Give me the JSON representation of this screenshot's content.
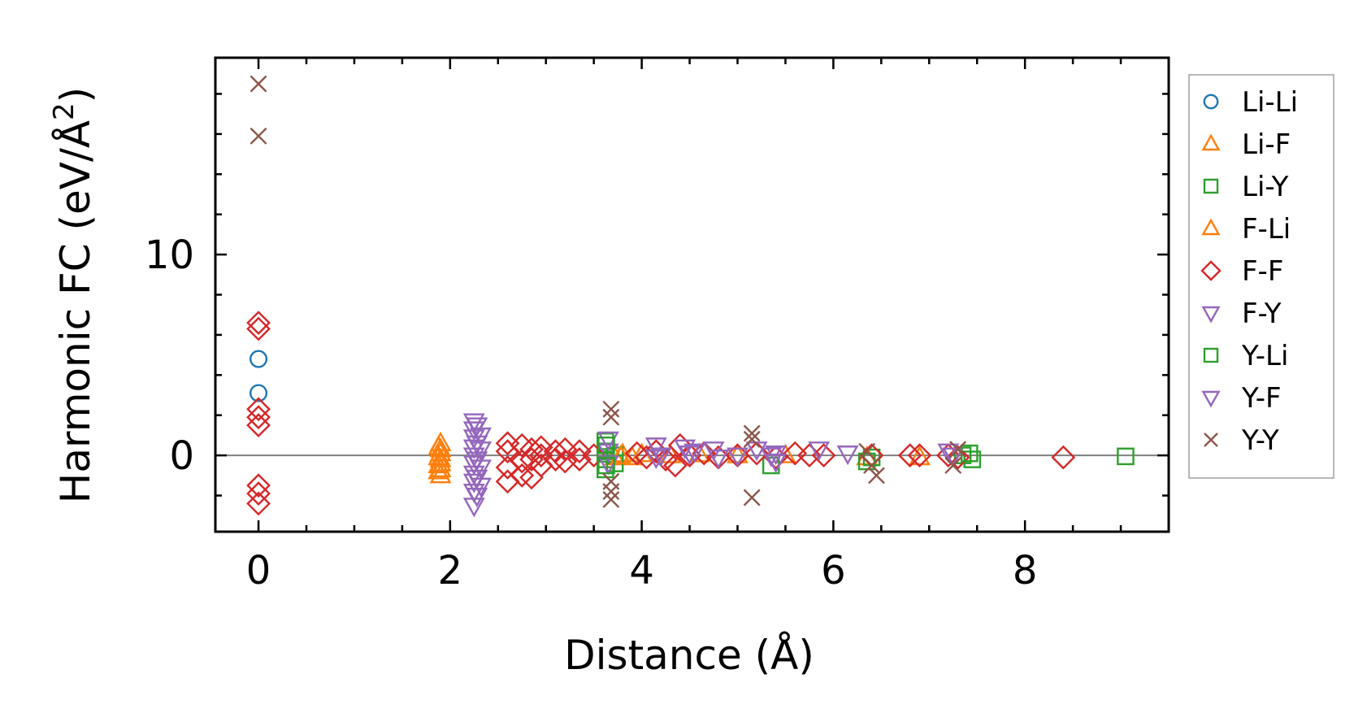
{
  "chart_data": {
    "type": "scatter",
    "title": "",
    "xlabel": "Distance (Å)",
    "ylabel_main": "Harmonic FC (eV/Å",
    "ylabel_sup": "2",
    "ylabel_close": ")",
    "xlim": [
      -0.45,
      9.5
    ],
    "ylim": [
      -3.8,
      19.8
    ],
    "xticks": [
      0,
      2,
      4,
      6,
      8
    ],
    "xtick_labels": [
      "0",
      "2",
      "4",
      "6",
      "8"
    ],
    "yticks": [
      0,
      10
    ],
    "ytick_labels": [
      "0",
      "10"
    ],
    "x_minor_step": 0.5,
    "y_minor_step": 2,
    "reference_line_y": 0,
    "grid": false,
    "legend_position": "outside-right",
    "series": [
      {
        "name": "Li-Li",
        "marker": "circle",
        "color": "#1f77b4",
        "points": [
          [
            0,
            4.8
          ],
          [
            0,
            3.1
          ]
        ]
      },
      {
        "name": "Li-F",
        "marker": "triangle-up",
        "color": "#ff7f0e",
        "points": [
          [
            1.9,
            0.6
          ],
          [
            1.9,
            0.3
          ],
          [
            1.9,
            0.1
          ],
          [
            1.9,
            -0.2
          ],
          [
            1.9,
            -0.4
          ],
          [
            1.9,
            -0.7
          ],
          [
            1.9,
            -1.0
          ],
          [
            3.72,
            -0.1
          ],
          [
            3.8,
            0.05
          ],
          [
            3.9,
            -0.1
          ],
          [
            4.0,
            0.05
          ],
          [
            4.3,
            0.0
          ],
          [
            4.6,
            0.05
          ],
          [
            5.5,
            0.0
          ],
          [
            6.35,
            -0.1
          ],
          [
            6.9,
            -0.1
          ]
        ]
      },
      {
        "name": "Li-Y",
        "marker": "square",
        "color": "#2ca02c",
        "points": [
          [
            3.62,
            0.7
          ],
          [
            3.62,
            0.2
          ],
          [
            3.62,
            -0.2
          ],
          [
            3.62,
            -0.7
          ],
          [
            3.72,
            0.0
          ],
          [
            3.72,
            -0.4
          ],
          [
            5.35,
            -0.5
          ],
          [
            6.4,
            -0.1
          ],
          [
            7.35,
            0.0
          ],
          [
            7.45,
            -0.2
          ],
          [
            9.05,
            -0.05
          ]
        ]
      },
      {
        "name": "F-Li",
        "marker": "triangle-up",
        "color": "#ff7f0e",
        "points": [
          [
            1.88,
            0.4
          ],
          [
            1.88,
            -0.1
          ],
          [
            1.88,
            -0.5
          ],
          [
            1.88,
            -0.8
          ],
          [
            3.78,
            -0.05
          ],
          [
            5.0,
            0.0
          ]
        ]
      },
      {
        "name": "F-F",
        "marker": "diamond",
        "color": "#d62728",
        "points": [
          [
            0,
            6.6
          ],
          [
            0,
            6.3
          ],
          [
            0,
            2.3
          ],
          [
            0,
            1.9
          ],
          [
            0,
            1.5
          ],
          [
            0,
            -1.5
          ],
          [
            0,
            -1.9
          ],
          [
            0,
            -2.4
          ],
          [
            2.6,
            0.6
          ],
          [
            2.6,
            0.2
          ],
          [
            2.6,
            -0.6
          ],
          [
            2.6,
            -1.3
          ],
          [
            2.75,
            0.5
          ],
          [
            2.75,
            -0.3
          ],
          [
            2.75,
            -1.0
          ],
          [
            2.85,
            0.3
          ],
          [
            2.85,
            -0.2
          ],
          [
            2.85,
            -1.1
          ],
          [
            2.95,
            0.4
          ],
          [
            2.95,
            0.0
          ],
          [
            2.95,
            -0.5
          ],
          [
            3.1,
            0.2
          ],
          [
            3.1,
            -0.2
          ],
          [
            3.2,
            0.3
          ],
          [
            3.2,
            -0.3
          ],
          [
            3.35,
            0.2
          ],
          [
            3.35,
            -0.2
          ],
          [
            3.5,
            0.0
          ],
          [
            3.95,
            0.1
          ],
          [
            4.05,
            -0.1
          ],
          [
            4.15,
            0.2
          ],
          [
            4.25,
            -0.2
          ],
          [
            4.35,
            -0.5
          ],
          [
            4.4,
            0.5
          ],
          [
            4.5,
            0.0
          ],
          [
            4.65,
            0.1
          ],
          [
            4.8,
            -0.1
          ],
          [
            5.0,
            0.0
          ],
          [
            5.2,
            0.1
          ],
          [
            5.4,
            -0.1
          ],
          [
            5.6,
            0.1
          ],
          [
            5.75,
            0.0
          ],
          [
            5.9,
            0.0
          ],
          [
            6.4,
            0.0
          ],
          [
            6.8,
            0.0
          ],
          [
            6.9,
            0.0
          ],
          [
            7.2,
            0.0
          ],
          [
            7.3,
            -0.1
          ],
          [
            8.4,
            -0.1
          ]
        ]
      },
      {
        "name": "F-Y",
        "marker": "triangle-down",
        "color": "#9467bd",
        "points": [
          [
            2.25,
            1.7
          ],
          [
            2.25,
            1.3
          ],
          [
            2.25,
            0.9
          ],
          [
            2.25,
            0.4
          ],
          [
            2.25,
            0.0
          ],
          [
            2.25,
            -0.4
          ],
          [
            2.25,
            -0.9
          ],
          [
            2.25,
            -1.3
          ],
          [
            2.25,
            -1.8
          ],
          [
            2.25,
            -2.5
          ],
          [
            2.32,
            1.0
          ],
          [
            2.32,
            0.3
          ],
          [
            2.32,
            -0.6
          ],
          [
            2.32,
            -1.5
          ],
          [
            3.65,
            0.8
          ],
          [
            3.65,
            0.2
          ],
          [
            3.65,
            -0.4
          ],
          [
            4.15,
            0.5
          ],
          [
            4.15,
            -0.1
          ],
          [
            4.45,
            0.4
          ],
          [
            4.5,
            0.1
          ],
          [
            4.75,
            0.3
          ],
          [
            4.8,
            -0.1
          ],
          [
            5.2,
            0.3
          ],
          [
            5.35,
            0.0
          ],
          [
            5.4,
            -0.3
          ],
          [
            5.85,
            0.3
          ],
          [
            6.15,
            0.1
          ],
          [
            7.25,
            0.0
          ]
        ]
      },
      {
        "name": "Y-Li",
        "marker": "square",
        "color": "#2ca02c",
        "points": [
          [
            3.63,
            0.5
          ],
          [
            3.63,
            -0.5
          ],
          [
            6.35,
            -0.3
          ],
          [
            7.42,
            0.1
          ]
        ]
      },
      {
        "name": "Y-F",
        "marker": "triangle-down",
        "color": "#9467bd",
        "points": [
          [
            2.28,
            1.5
          ],
          [
            2.28,
            0.6
          ],
          [
            2.28,
            -0.2
          ],
          [
            2.28,
            -1.1
          ],
          [
            2.28,
            -2.0
          ],
          [
            4.2,
            0.0
          ],
          [
            4.55,
            0.2
          ],
          [
            5.0,
            0.0
          ],
          [
            5.4,
            0.1
          ],
          [
            7.2,
            0.2
          ]
        ]
      },
      {
        "name": "Y-Y",
        "marker": "x",
        "color": "#8c564b",
        "points": [
          [
            0,
            18.5
          ],
          [
            0,
            15.9
          ],
          [
            3.68,
            2.3
          ],
          [
            3.68,
            1.9
          ],
          [
            3.68,
            -1.3
          ],
          [
            3.68,
            -1.8
          ],
          [
            3.68,
            -2.2
          ],
          [
            5.15,
            1.1
          ],
          [
            5.15,
            0.8
          ],
          [
            5.15,
            -2.1
          ],
          [
            6.35,
            0.2
          ],
          [
            6.4,
            -0.5
          ],
          [
            6.45,
            -1.0
          ],
          [
            7.25,
            -0.5
          ],
          [
            7.3,
            0.3
          ]
        ]
      }
    ]
  }
}
